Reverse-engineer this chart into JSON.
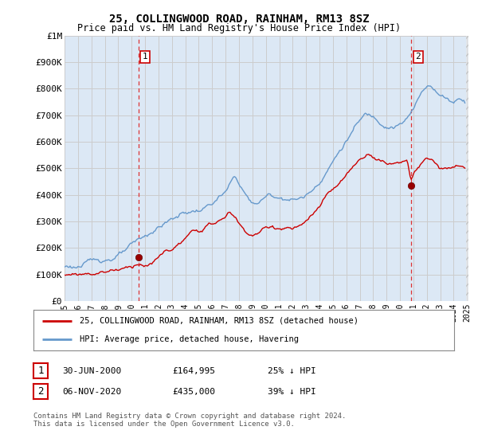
{
  "title": "25, COLLINGWOOD ROAD, RAINHAM, RM13 8SZ",
  "subtitle": "Price paid vs. HM Land Registry's House Price Index (HPI)",
  "ylim": [
    0,
    1000000
  ],
  "yticks": [
    0,
    100000,
    200000,
    300000,
    400000,
    500000,
    600000,
    700000,
    800000,
    900000,
    1000000
  ],
  "ytick_labels": [
    "£0",
    "£100K",
    "£200K",
    "£300K",
    "£400K",
    "£500K",
    "£600K",
    "£700K",
    "£800K",
    "£900K",
    "£1M"
  ],
  "hpi_color": "#6699cc",
  "price_color": "#cc0000",
  "annotation_box_color": "#cc0000",
  "grid_color": "#cccccc",
  "background_color": "#ffffff",
  "plot_bg_color": "#dce8f5",
  "sale1_x": 2000.5,
  "sale1_price": 164995,
  "sale2_x": 2020.85,
  "sale2_price": 435000,
  "legend_line1": "25, COLLINGWOOD ROAD, RAINHAM, RM13 8SZ (detached house)",
  "legend_line2": "HPI: Average price, detached house, Havering",
  "annot1_date": "30-JUN-2000",
  "annot1_price": "£164,995",
  "annot1_hpi": "25% ↓ HPI",
  "annot2_date": "06-NOV-2020",
  "annot2_price": "£435,000",
  "annot2_hpi": "39% ↓ HPI",
  "footer": "Contains HM Land Registry data © Crown copyright and database right 2024.\nThis data is licensed under the Open Government Licence v3.0.",
  "xmin": 1995,
  "xmax": 2025
}
